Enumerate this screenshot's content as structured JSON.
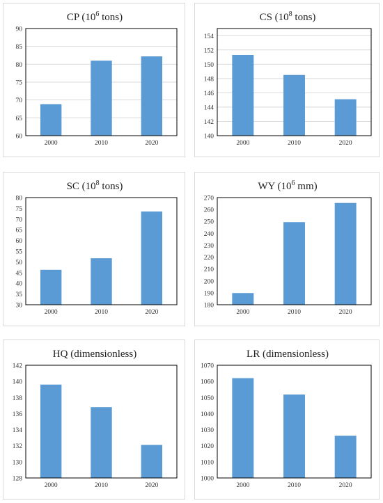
{
  "chart_data": [
    {
      "type": "bar",
      "title_main": "CP (10",
      "title_sup": "6",
      "title_end": " tons)",
      "categories": [
        "2000",
        "2010",
        "2020"
      ],
      "values": [
        68.8,
        81.0,
        82.2
      ],
      "ylim": [
        60,
        90
      ],
      "yticks": [
        60,
        65,
        70,
        75,
        80,
        85,
        90
      ],
      "grid": true,
      "color": "#5b9bd5"
    },
    {
      "type": "bar",
      "title_main": "CS (10",
      "title_sup": "8",
      "title_end": " tons)",
      "categories": [
        "2000",
        "2010",
        "2020"
      ],
      "values": [
        151.3,
        148.5,
        145.1
      ],
      "ylim": [
        140,
        155
      ],
      "yticks": [
        140,
        142,
        144,
        146,
        148,
        150,
        152,
        154
      ],
      "grid": true,
      "color": "#5b9bd5"
    },
    {
      "type": "bar",
      "title_main": "SC (10",
      "title_sup": "8",
      "title_end": " tons)",
      "categories": [
        "2000",
        "2010",
        "2020"
      ],
      "values": [
        46.3,
        51.7,
        73.5
      ],
      "ylim": [
        30,
        80
      ],
      "yticks": [
        30,
        35,
        40,
        45,
        50,
        55,
        60,
        65,
        70,
        75,
        80
      ],
      "grid": false,
      "color": "#5b9bd5"
    },
    {
      "type": "bar",
      "title_main": "WY (10",
      "title_sup": "6",
      "title_end": " mm)",
      "categories": [
        "2000",
        "2010",
        "2020"
      ],
      "values": [
        189.8,
        249.4,
        265.5
      ],
      "ylim": [
        180,
        270
      ],
      "yticks": [
        180,
        190,
        200,
        210,
        220,
        230,
        240,
        250,
        260,
        270
      ],
      "grid": false,
      "color": "#5b9bd5"
    },
    {
      "type": "bar",
      "title_main": "HQ (dimensionless)",
      "title_sup": "",
      "title_end": "",
      "categories": [
        "2000",
        "2010",
        "2020"
      ],
      "values": [
        139.6,
        136.8,
        132.1
      ],
      "ylim": [
        128,
        142
      ],
      "yticks": [
        128,
        130,
        132,
        134,
        136,
        138,
        140,
        142
      ],
      "grid": false,
      "color": "#5b9bd5"
    },
    {
      "type": "bar",
      "title_main": "LR (dimensionless)",
      "title_sup": "",
      "title_end": "",
      "categories": [
        "2000",
        "2010",
        "2020"
      ],
      "values": [
        1062,
        1051.8,
        1026.2
      ],
      "ylim": [
        1000,
        1070
      ],
      "yticks": [
        1000,
        1010,
        1020,
        1030,
        1040,
        1050,
        1060,
        1070
      ],
      "grid": false,
      "color": "#5b9bd5"
    }
  ]
}
